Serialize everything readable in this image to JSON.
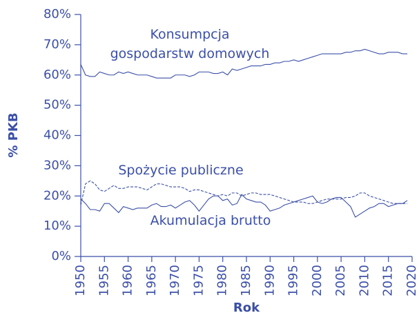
{
  "chart_data": {
    "type": "line",
    "xlabel": "Rok",
    "ylabel": "% PKB",
    "x": [
      1950,
      1951,
      1952,
      1953,
      1954,
      1955,
      1956,
      1957,
      1958,
      1959,
      1960,
      1961,
      1962,
      1963,
      1964,
      1965,
      1966,
      1967,
      1968,
      1969,
      1970,
      1971,
      1972,
      1973,
      1974,
      1975,
      1976,
      1977,
      1978,
      1979,
      1980,
      1981,
      1982,
      1983,
      1984,
      1985,
      1986,
      1987,
      1988,
      1989,
      1990,
      1991,
      1992,
      1993,
      1994,
      1995,
      1996,
      1997,
      1998,
      1999,
      2000,
      2001,
      2002,
      2003,
      2004,
      2005,
      2006,
      2007,
      2008,
      2009,
      2010,
      2011,
      2012,
      2013,
      2014,
      2015,
      2016,
      2017,
      2018,
      2019
    ],
    "series": [
      {
        "name": "Konsumpcja\ngospodarstw domowych",
        "color": "#3b4fa8",
        "dash": false,
        "values": [
          63.5,
          60,
          59.5,
          59.5,
          61,
          60.5,
          60,
          60,
          61,
          60.5,
          61,
          60.5,
          60,
          60,
          60,
          59.5,
          59,
          59,
          59,
          59,
          60,
          60,
          60,
          59.5,
          60,
          61,
          61,
          61,
          60.5,
          60.5,
          61,
          60,
          62,
          61.5,
          62,
          62.5,
          63,
          63,
          63,
          63.5,
          63.5,
          64,
          64,
          64.5,
          64.5,
          65,
          64.5,
          65,
          65.5,
          66,
          66.5,
          67,
          67,
          67,
          67,
          67,
          67.5,
          67.5,
          68,
          68,
          68.5,
          68,
          67.5,
          67,
          67,
          67.5,
          67.5,
          67.5,
          67,
          67
        ]
      },
      {
        "name": "Spożycie publiczne",
        "color": "#3b4fa8",
        "dash": true,
        "values": [
          17,
          24,
          25,
          24,
          22,
          21.5,
          22.5,
          23.5,
          22.5,
          22.5,
          23,
          23,
          23,
          22.5,
          22,
          23,
          24,
          24,
          23.5,
          23,
          23,
          23,
          22.5,
          21.5,
          22,
          22,
          21.5,
          21,
          20.5,
          20,
          20.5,
          20,
          21,
          21,
          20,
          20.5,
          21,
          21,
          20.5,
          20.5,
          20.5,
          20,
          19.5,
          19,
          18.5,
          18,
          18,
          18,
          17.5,
          17.5,
          18,
          18.5,
          19,
          19,
          19,
          19,
          19.5,
          19.5,
          20,
          21,
          21,
          20,
          19.5,
          19,
          18.5,
          18,
          17.5,
          17.5,
          17.5,
          17.5
        ]
      },
      {
        "name": "Akumulacja brutto",
        "color": "#3b4fa8",
        "dash": false,
        "values": [
          19,
          17.5,
          15.5,
          15.5,
          15,
          17.5,
          17.5,
          16,
          14.5,
          16.5,
          16,
          15.5,
          16,
          16,
          16,
          17,
          17.5,
          16.5,
          16.5,
          17,
          16,
          17,
          18,
          18.5,
          17,
          15,
          17,
          19,
          20,
          20,
          18.5,
          19,
          17,
          17.5,
          20.5,
          19,
          18.5,
          18,
          18,
          17,
          15,
          15.5,
          16,
          17,
          17.5,
          18,
          18.5,
          19,
          19.5,
          20,
          18,
          17.5,
          18,
          19,
          19.5,
          19.5,
          18,
          16.5,
          13,
          14,
          15,
          16,
          16.5,
          17.5,
          17.5,
          16.5,
          17,
          17.5,
          17.5,
          18.5
        ]
      }
    ],
    "xlim": [
      1950,
      2020
    ],
    "xticks": [
      1950,
      1955,
      1960,
      1965,
      1970,
      1975,
      1980,
      1985,
      1990,
      1995,
      2000,
      2005,
      2010,
      2015,
      2020
    ],
    "ylim": [
      0,
      80
    ],
    "yticks": [
      {
        "value": 0,
        "label": "0%"
      },
      {
        "value": 10,
        "label": "10%"
      },
      {
        "value": 20,
        "label": "20%"
      },
      {
        "value": 30,
        "label": "30%"
      },
      {
        "value": 40,
        "label": "40%"
      },
      {
        "value": 50,
        "label": "50%"
      },
      {
        "value": 60,
        "label": "60%"
      },
      {
        "value": 70,
        "label": "70%"
      },
      {
        "value": 80,
        "label": "80%"
      }
    ]
  }
}
